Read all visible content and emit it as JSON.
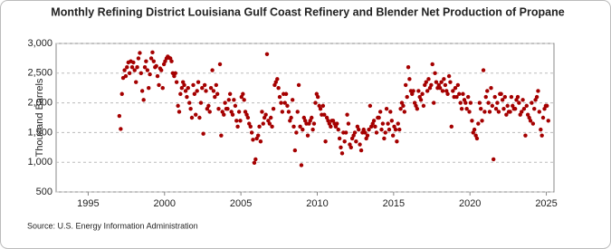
{
  "chart_data": {
    "type": "scatter",
    "title": "Monthly Refining District Louisiana Gulf Coast Refinery and Blender Net Production of Propane",
    "y_label": "Thousand Barrels",
    "source": "Source: U.S. Energy Information Administration",
    "color": "#a50000",
    "grid": true,
    "xlim": [
      1992.9,
      2025.5
    ],
    "xticks": [
      1995,
      2000,
      2005,
      2010,
      2015,
      2020,
      2025
    ],
    "ylim": [
      500,
      3000
    ],
    "yticks": [
      {
        "value": 500,
        "label": "500"
      },
      {
        "value": 1000,
        "label": "1,000"
      },
      {
        "value": 1500,
        "label": "1,500"
      },
      {
        "value": 2000,
        "label": "2,000"
      },
      {
        "value": 2500,
        "label": "2,500"
      },
      {
        "value": 3000,
        "label": "3,000"
      }
    ],
    "x": [
      1997.04,
      1997.13,
      1997.21,
      1997.29,
      1997.38,
      1997.46,
      1997.54,
      1997.63,
      1997.71,
      1997.79,
      1997.88,
      1997.96,
      1998.04,
      1998.13,
      1998.21,
      1998.29,
      1998.38,
      1998.46,
      1998.54,
      1998.63,
      1998.71,
      1998.79,
      1998.88,
      1998.96,
      1999.04,
      1999.13,
      1999.21,
      1999.29,
      1999.38,
      1999.46,
      1999.54,
      1999.63,
      1999.71,
      1999.79,
      1999.88,
      1999.96,
      2000.04,
      2000.13,
      2000.21,
      2000.29,
      2000.38,
      2000.46,
      2000.54,
      2000.63,
      2000.71,
      2000.79,
      2000.88,
      2000.96,
      2001.04,
      2001.13,
      2001.21,
      2001.29,
      2001.38,
      2001.46,
      2001.54,
      2001.63,
      2001.71,
      2001.79,
      2001.88,
      2001.96,
      2002.04,
      2002.13,
      2002.21,
      2002.29,
      2002.38,
      2002.46,
      2002.54,
      2002.63,
      2002.71,
      2002.79,
      2002.88,
      2002.96,
      2003.04,
      2003.13,
      2003.21,
      2003.29,
      2003.38,
      2003.46,
      2003.54,
      2003.63,
      2003.71,
      2003.79,
      2003.88,
      2003.96,
      2004.04,
      2004.13,
      2004.21,
      2004.29,
      2004.38,
      2004.46,
      2004.54,
      2004.63,
      2004.71,
      2004.79,
      2004.88,
      2004.96,
      2005.04,
      2005.13,
      2005.21,
      2005.29,
      2005.38,
      2005.46,
      2005.54,
      2005.63,
      2005.71,
      2005.79,
      2005.88,
      2005.96,
      2006.04,
      2006.13,
      2006.21,
      2006.29,
      2006.38,
      2006.46,
      2006.54,
      2006.63,
      2006.71,
      2006.79,
      2006.88,
      2006.96,
      2007.04,
      2007.13,
      2007.21,
      2007.29,
      2007.38,
      2007.46,
      2007.54,
      2007.63,
      2007.71,
      2007.79,
      2007.88,
      2007.96,
      2008.04,
      2008.13,
      2008.21,
      2008.29,
      2008.38,
      2008.46,
      2008.54,
      2008.63,
      2008.71,
      2008.79,
      2008.88,
      2008.96,
      2009.04,
      2009.13,
      2009.21,
      2009.29,
      2009.38,
      2009.46,
      2009.54,
      2009.63,
      2009.71,
      2009.79,
      2009.88,
      2009.96,
      2010.04,
      2010.13,
      2010.21,
      2010.29,
      2010.38,
      2010.46,
      2010.54,
      2010.63,
      2010.71,
      2010.79,
      2010.88,
      2010.96,
      2011.04,
      2011.13,
      2011.21,
      2011.29,
      2011.38,
      2011.46,
      2011.54,
      2011.63,
      2011.71,
      2011.79,
      2011.88,
      2011.96,
      2012.04,
      2012.13,
      2012.21,
      2012.29,
      2012.38,
      2012.46,
      2012.54,
      2012.63,
      2012.71,
      2012.79,
      2012.88,
      2012.96,
      2013.04,
      2013.13,
      2013.21,
      2013.29,
      2013.38,
      2013.46,
      2013.54,
      2013.63,
      2013.71,
      2013.79,
      2013.88,
      2013.96,
      2014.04,
      2014.13,
      2014.21,
      2014.29,
      2014.38,
      2014.46,
      2014.54,
      2014.63,
      2014.71,
      2014.79,
      2014.88,
      2014.96,
      2015.04,
      2015.13,
      2015.21,
      2015.29,
      2015.38,
      2015.46,
      2015.54,
      2015.63,
      2015.71,
      2015.79,
      2015.88,
      2015.96,
      2016.04,
      2016.13,
      2016.21,
      2016.29,
      2016.38,
      2016.46,
      2016.54,
      2016.63,
      2016.71,
      2016.79,
      2016.88,
      2016.96,
      2017.04,
      2017.13,
      2017.21,
      2017.29,
      2017.38,
      2017.46,
      2017.54,
      2017.63,
      2017.71,
      2017.79,
      2017.88,
      2017.96,
      2018.04,
      2018.13,
      2018.21,
      2018.29,
      2018.38,
      2018.46,
      2018.54,
      2018.63,
      2018.71,
      2018.79,
      2018.88,
      2018.96,
      2019.04,
      2019.13,
      2019.21,
      2019.29,
      2019.38,
      2019.46,
      2019.54,
      2019.63,
      2019.71,
      2019.79,
      2019.88,
      2019.96,
      2020.04,
      2020.13,
      2020.21,
      2020.29,
      2020.38,
      2020.46,
      2020.54,
      2020.63,
      2020.71,
      2020.79,
      2020.88,
      2020.96,
      2021.04,
      2021.13,
      2021.21,
      2021.29,
      2021.38,
      2021.46,
      2021.54,
      2021.63,
      2021.71,
      2021.79,
      2021.88,
      2021.96,
      2022.04,
      2022.13,
      2022.21,
      2022.29,
      2022.38,
      2022.46,
      2022.54,
      2022.63,
      2022.71,
      2022.79,
      2022.88,
      2022.96,
      2023.04,
      2023.13,
      2023.21,
      2023.29,
      2023.38,
      2023.46,
      2023.54,
      2023.63,
      2023.71,
      2023.79,
      2023.88,
      2023.96,
      2024.04,
      2024.13,
      2024.21,
      2024.29,
      2024.38,
      2024.46,
      2024.54,
      2024.63,
      2024.71,
      2024.79,
      2024.88,
      2024.96,
      2025.04,
      2025.13
    ],
    "values": [
      1780,
      1560,
      2150,
      2420,
      2550,
      2450,
      2600,
      2680,
      2500,
      2700,
      2600,
      2680,
      2550,
      2350,
      2600,
      2750,
      2840,
      2500,
      2200,
      2050,
      2600,
      2700,
      2550,
      2250,
      2480,
      2750,
      2850,
      2700,
      2600,
      2620,
      2450,
      2300,
      2580,
      2550,
      2250,
      2650,
      2700,
      2750,
      2780,
      2760,
      2750,
      2700,
      2500,
      2450,
      2500,
      2350,
      1950,
      1850,
      2150,
      2250,
      2350,
      2300,
      2200,
      2100,
      2250,
      2000,
      1900,
      1750,
      2300,
      2150,
      1800,
      2200,
      2350,
      1750,
      2000,
      2250,
      1480,
      2300,
      2200,
      1900,
      1950,
      1850,
      2250,
      2550,
      2200,
      2100,
      2300,
      2150,
      1900,
      2650,
      1450,
      1850,
      1800,
      2000,
      1900,
      1900,
      2050,
      2150,
      1850,
      1800,
      2050,
      1950,
      1700,
      1600,
      1850,
      1700,
      2100,
      2150,
      2050,
      1850,
      1800,
      1750,
      1650,
      1600,
      1500,
      1380,
      990,
      1050,
      1400,
      1450,
      1600,
      1350,
      1850,
      1650,
      1750,
      1800,
      2820,
      1700,
      1650,
      1750,
      1600,
      1900,
      2300,
      2350,
      2400,
      2250,
      2100,
      2000,
      1850,
      2150,
      2000,
      2150,
      1950,
      1850,
      1700,
      1750,
      2050,
      1600,
      1200,
      1500,
      1850,
      2300,
      1600,
      950,
      1550,
      1750,
      1700,
      1650,
      1450,
      1650,
      1700,
      1750,
      1550,
      1650,
      2000,
      2150,
      2100,
      1950,
      1900,
      1800,
      1950,
      1800,
      1350,
      1750,
      1700,
      1650,
      1600,
      1700,
      1700,
      1650,
      1600,
      1650,
      1550,
      1400,
      1250,
      1150,
      1500,
      1350,
      1500,
      1800,
      1650,
      1300,
      1250,
      1400,
      1450,
      1500,
      1350,
      1600,
      1550,
      1300,
      1200,
      1500,
      1550,
      1500,
      1400,
      1450,
      1550,
      1950,
      1600,
      1650,
      1700,
      1600,
      1500,
      1750,
      1750,
      1850,
      1550,
      1650,
      1400,
      1500,
      1900,
      1650,
      1550,
      1850,
      1700,
      1450,
      1600,
      1550,
      1350,
      1650,
      1550,
      1900,
      2000,
      1950,
      1850,
      2300,
      2100,
      2600,
      2400,
      2200,
      2150,
      2200,
      2000,
      1950,
      1900,
      2200,
      2100,
      2050,
      2150,
      1950,
      2300,
      2350,
      2200,
      2400,
      2250,
      2300,
      2650,
      2000,
      2500,
      2350,
      2250,
      2300,
      2250,
      2350,
      2200,
      2400,
      2300,
      2200,
      2150,
      2450,
      2350,
      1600,
      2200,
      2100,
      2250,
      2100,
      2300,
      2150,
      2000,
      1900,
      2150,
      2050,
      2000,
      1900,
      2100,
      1850,
      2000,
      1700,
      1500,
      1550,
      1450,
      1400,
      1650,
      2000,
      1900,
      1700,
      2550,
      1850,
      2100,
      2200,
      2000,
      1850,
      2250,
      1950,
      1050,
      2100,
      1900,
      2000,
      1850,
      2150,
      2150,
      2050,
      1900,
      2100,
      1800,
      1950,
      1850,
      1850,
      2100,
      1950,
      1900,
      1900,
      2050,
      2100,
      2000,
      1800,
      1850,
      2050,
      1900,
      1450,
      1950,
      1800,
      1750,
      1700,
      2000,
      1650,
      1900,
      2050,
      2100,
      2200,
      1850,
      1550,
      1450,
      1750,
      1900,
      1950,
      1950,
      1700
    ]
  }
}
